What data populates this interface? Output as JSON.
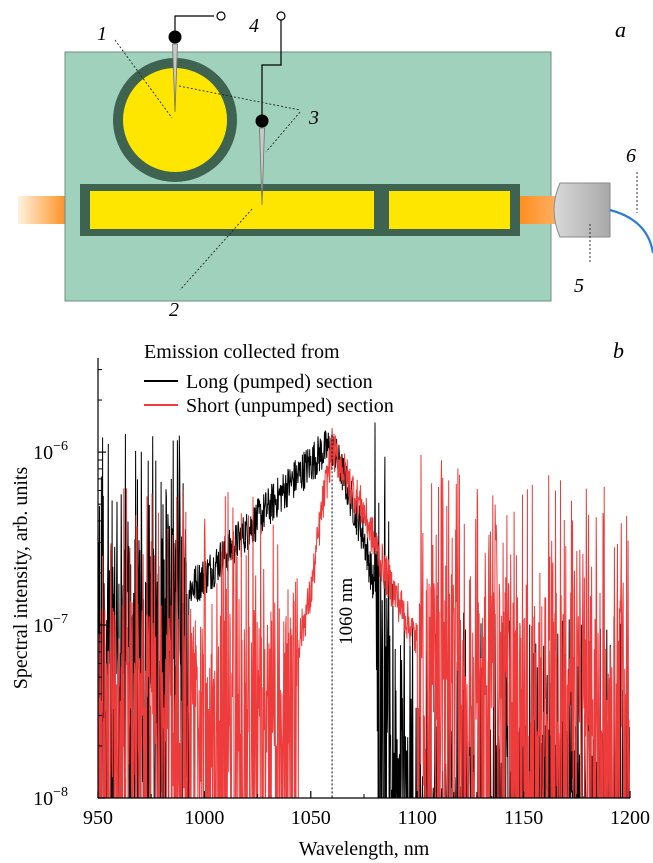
{
  "panel_a": {
    "panel_label": "a",
    "callouts": [
      "1",
      "2",
      "3",
      "4",
      "5",
      "6"
    ],
    "colors": {
      "board": "#9fd1bd",
      "frame": "#3e6350",
      "chip": "#ffe600",
      "beam": "#ff8c1a",
      "lens": "#bdbdbd",
      "fiber": "#2b7bd6"
    },
    "icons": [
      "probe-needle-icon",
      "contact-terminal-icon",
      "lens-icon",
      "fiber-icon"
    ]
  },
  "chart_data": {
    "type": "line",
    "panel_label": "b",
    "xlabel": "Wavelength, nm",
    "ylabel": "Spectral intensity, arb. units",
    "xlim": [
      950,
      1200
    ],
    "ylim": [
      1e-08,
      3.5e-06
    ],
    "log_y": true,
    "x_ticks": [
      "950",
      "1000",
      "1050",
      "1100",
      "1150",
      "1200"
    ],
    "y_ticks": [
      {
        "base": "10",
        "exp": "−8"
      },
      {
        "base": "10",
        "exp": "−7"
      },
      {
        "base": "10",
        "exp": "−6"
      }
    ],
    "legend_title": "Emission collected from",
    "legend_position": "top-left",
    "grid": false,
    "annotation": {
      "text": "1060 nm",
      "x": 1060
    },
    "series": [
      {
        "name": "Long (pumped) section",
        "color": "#000000",
        "noise_floor": 1e-07,
        "points": [
          [
            950,
            1.1e-07
          ],
          [
            980,
            1.2e-07
          ],
          [
            1000,
            1.9e-07
          ],
          [
            1020,
            3.5e-07
          ],
          [
            1040,
            6.5e-07
          ],
          [
            1055,
            1e-06
          ],
          [
            1060,
            1.08e-06
          ],
          [
            1065,
            7.5e-07
          ],
          [
            1075,
            3.2e-07
          ],
          [
            1085,
            8e-08
          ],
          [
            1090,
            1e-08
          ],
          [
            1200,
            1e-08
          ]
        ]
      },
      {
        "name": "Short (unpumped) section",
        "color": "#ee3b3b",
        "noise_floor": 5e-08,
        "points": [
          [
            950,
            5e-08
          ],
          [
            1040,
            5e-08
          ],
          [
            1050,
            1.5e-07
          ],
          [
            1055,
            4.5e-07
          ],
          [
            1060,
            1.05e-06
          ],
          [
            1065,
            8e-07
          ],
          [
            1075,
            4.5e-07
          ],
          [
            1085,
            2e-07
          ],
          [
            1100,
            8e-08
          ],
          [
            1200,
            5e-08
          ]
        ]
      }
    ]
  }
}
